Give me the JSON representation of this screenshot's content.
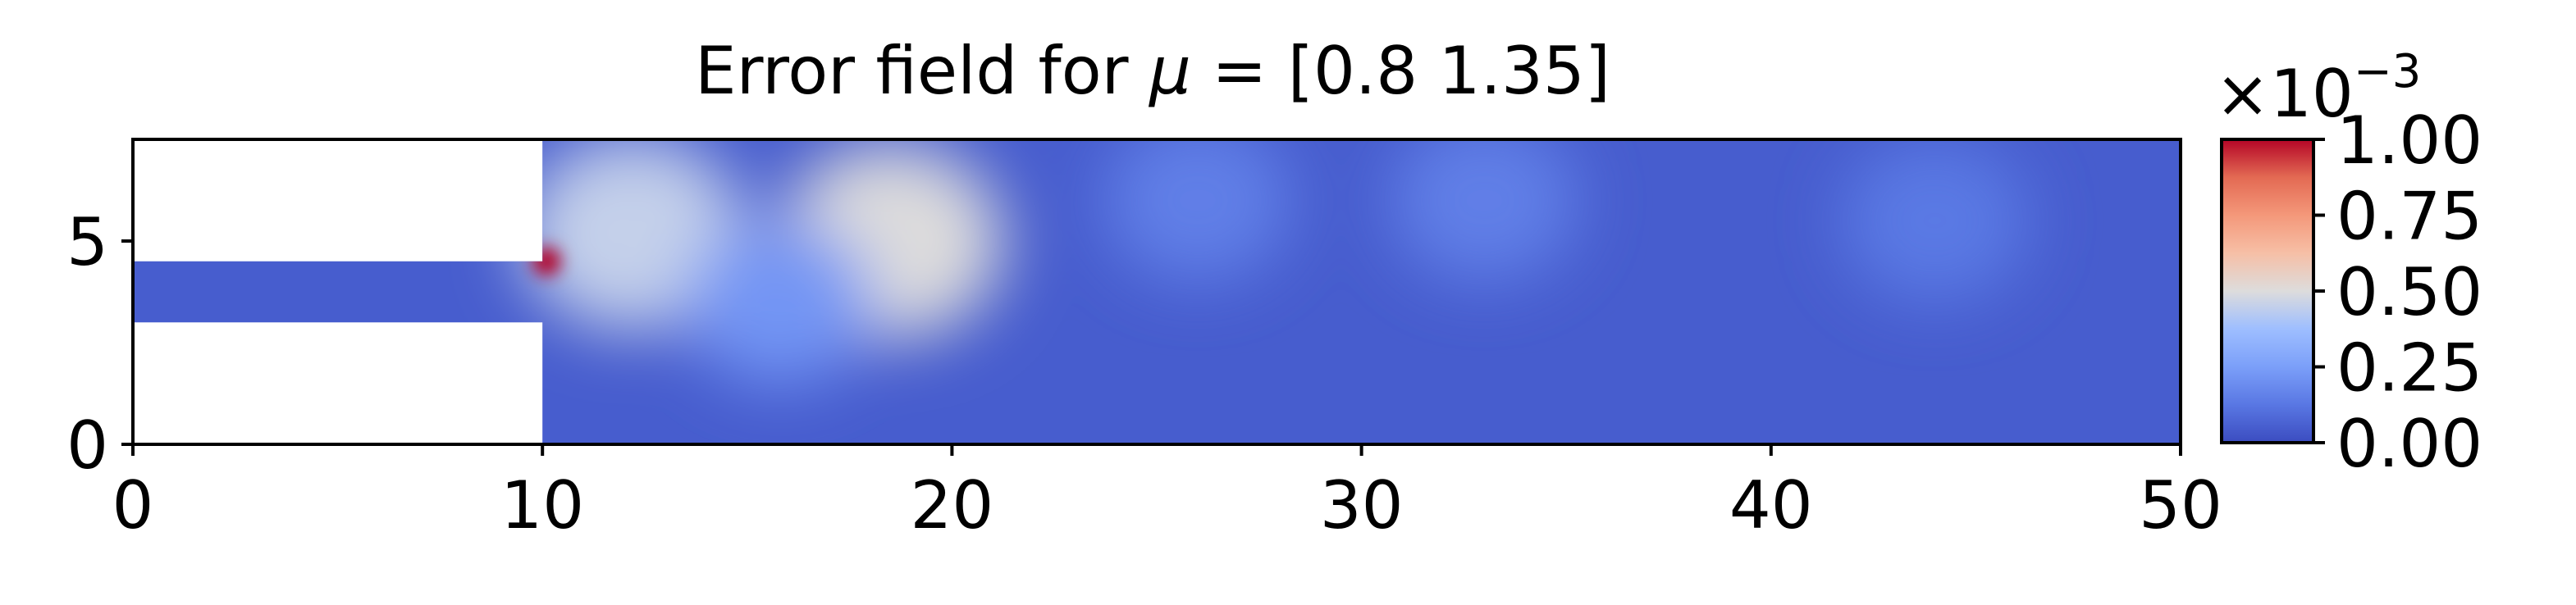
{
  "chart_data": {
    "type": "heatmap",
    "title_prefix": "Error field for ",
    "title_symbol": "μ",
    "title_suffix": " = [0.8  1.35]",
    "mu": [
      0.8,
      1.35
    ],
    "xlim": [
      0,
      50
    ],
    "ylim": [
      0,
      7.5
    ],
    "xticks": [
      0,
      10,
      20,
      30,
      40,
      50
    ],
    "yticks": [
      0,
      5
    ],
    "domain": {
      "inlet_channel": {
        "x": [
          0,
          10
        ],
        "y": [
          3.0,
          4.5
        ]
      },
      "main_chamber": {
        "x": [
          10,
          50
        ],
        "y": [
          0,
          7.5
        ]
      }
    },
    "colormap": "coolwarm",
    "colorbar": {
      "range": [
        0.0,
        1.0
      ],
      "ticks": [
        0.0,
        0.25,
        0.5,
        0.75,
        1.0
      ],
      "tick_labels": [
        "0.00",
        "0.25",
        "0.50",
        "0.75",
        "1.00"
      ],
      "offset_base": "×10",
      "offset_exponent": "−3"
    },
    "error_blobs": [
      {
        "x": 10.1,
        "y": 4.5,
        "value": 1.0
      },
      {
        "x": 12.2,
        "y": 5.2,
        "value": 0.45
      },
      {
        "x": 18.5,
        "y": 5.0,
        "value": 0.5
      },
      {
        "x": 15.8,
        "y": 3.5,
        "value": 0.22
      },
      {
        "x": 26.0,
        "y": 6.0,
        "value": 0.15
      },
      {
        "x": 33.0,
        "y": 6.0,
        "value": 0.15
      },
      {
        "x": 44.0,
        "y": 5.5,
        "value": 0.13
      }
    ],
    "background_value": 0.05
  }
}
